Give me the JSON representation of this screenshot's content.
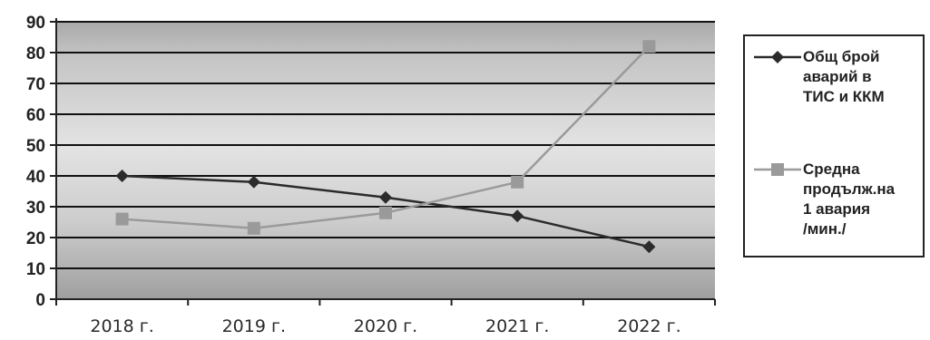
{
  "chart_data": {
    "type": "line",
    "categories": [
      "2018 г.",
      "2019 г.",
      "2020 г.",
      "2021 г.",
      "2022 г."
    ],
    "yticks": [
      "0",
      "10",
      "20",
      "30",
      "40",
      "50",
      "60",
      "70",
      "80",
      "90"
    ],
    "ylim": [
      0,
      90
    ],
    "grid": true,
    "legend_position": "right",
    "series": [
      {
        "name": "Общ брой\nаварий в\nТИС и ККМ",
        "values": [
          40,
          38,
          33,
          27,
          17
        ],
        "color": "#2b2b2b",
        "marker": "diamond"
      },
      {
        "name": "Средна\nпродълж.на\n1 авария\n/мин./",
        "values": [
          26,
          23,
          28,
          38,
          82
        ],
        "color": "#9a9a9a",
        "marker": "square"
      }
    ]
  }
}
